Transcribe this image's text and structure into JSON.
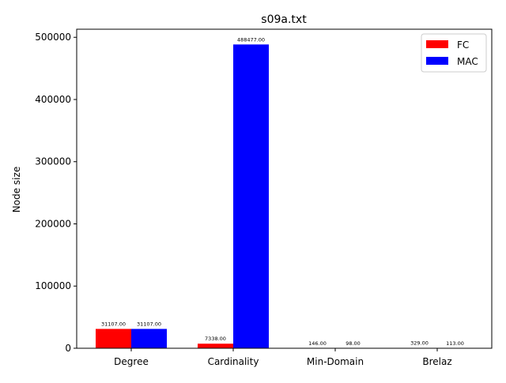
{
  "chart_data": {
    "type": "bar",
    "title": "s09a.txt",
    "xlabel": "",
    "ylabel": "Node size",
    "categories": [
      "Degree",
      "Cardinality",
      "Min-Domain",
      "Brelaz"
    ],
    "series": [
      {
        "name": "FC",
        "color": "#ff0000",
        "values": [
          31107,
          7338,
          146,
          329
        ],
        "labels": [
          "31107.00",
          "7338.00",
          "146.00",
          "329.00"
        ]
      },
      {
        "name": "MAC",
        "color": "#0000ff",
        "values": [
          31107,
          488477,
          98,
          113
        ],
        "labels": [
          "31107.00",
          "488477.00",
          "98.00",
          "113.00"
        ]
      }
    ],
    "ylim": [
      0,
      513000
    ],
    "yticks": [
      0,
      100000,
      200000,
      300000,
      400000,
      500000
    ],
    "ytick_labels": [
      "0",
      "100000",
      "200000",
      "300000",
      "400000",
      "500000"
    ],
    "grid": false,
    "legend_position": "top-right"
  }
}
